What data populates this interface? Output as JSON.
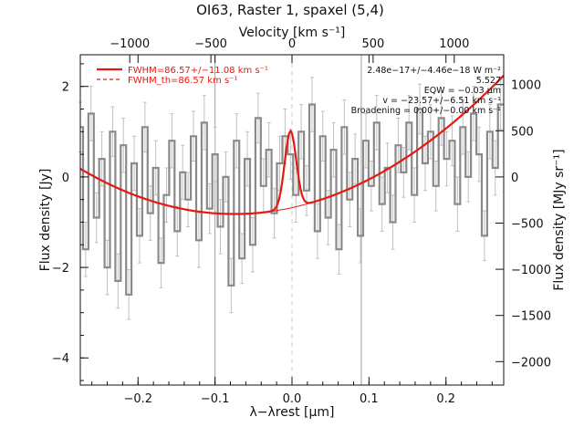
{
  "chart_data": {
    "type": "line",
    "title": "OI63, Raster 1, spaxel (5,4)",
    "xlabel": "λ−λrest [μm]",
    "ylabel_left": "Flux density [Jy]",
    "ylabel_right": "Flux density [MJy sr⁻¹]",
    "xlabel_top": "Velocity [km s⁻¹]",
    "xlim": [
      -0.275,
      0.275
    ],
    "ylim": [
      -4.6,
      2.7
    ],
    "x_ticks": [
      -0.2,
      -0.1,
      0.0,
      0.1,
      0.2
    ],
    "x_tick_labels": [
      "−0.2",
      "−0.1",
      "0.0",
      "0.1",
      "0.2"
    ],
    "y_ticks": [
      -4,
      -2,
      0,
      2
    ],
    "y_tick_labels": [
      "−4",
      "−2",
      "0",
      "2"
    ],
    "top_ticks_kms": [
      -1000,
      -500,
      0,
      500,
      1000
    ],
    "top_tick_labels": [
      "−1000",
      "−500",
      "0",
      "500",
      "1000"
    ],
    "right_ticks_mjy": [
      -2000,
      -1500,
      -1000,
      -500,
      0,
      500,
      1000
    ],
    "right_tick_labels": [
      "−2000",
      "−1500",
      "−1000",
      "−500",
      "0",
      "500",
      "1000"
    ],
    "vertical_lines": [
      -0.1,
      0.0,
      0.09
    ],
    "legend": {
      "placement": "top-left",
      "entries": [
        "FWHM=86.57+/−11.08 km s⁻¹",
        "FWHM_th=86.57 km s⁻¹"
      ]
    },
    "annotations": [
      "2.48e−17+/−4.46e−18 W m⁻²",
      "5.527",
      "EQW = −0.03 μm",
      "v = −23.57+/−6.51 km s⁻¹",
      "Broadening = 0.00+/−0.00 km s⁻¹"
    ],
    "series": [
      {
        "name": "data",
        "x": [
          -0.275,
          -0.268,
          -0.261,
          -0.254,
          -0.247,
          -0.24,
          -0.233,
          -0.226,
          -0.219,
          -0.212,
          -0.205,
          -0.198,
          -0.191,
          -0.184,
          -0.177,
          -0.17,
          -0.163,
          -0.156,
          -0.149,
          -0.142,
          -0.135,
          -0.128,
          -0.121,
          -0.114,
          -0.107,
          -0.1,
          -0.093,
          -0.086,
          -0.079,
          -0.072,
          -0.065,
          -0.058,
          -0.051,
          -0.044,
          -0.037,
          -0.03,
          -0.023,
          -0.016,
          -0.009,
          -0.002,
          0.005,
          0.012,
          0.019,
          0.026,
          0.033,
          0.04,
          0.047,
          0.054,
          0.061,
          0.068,
          0.075,
          0.082,
          0.089,
          0.096,
          0.103,
          0.11,
          0.117,
          0.124,
          0.131,
          0.138,
          0.145,
          0.152,
          0.159,
          0.166,
          0.173,
          0.18,
          0.187,
          0.194,
          0.201,
          0.208,
          0.215,
          0.222,
          0.229,
          0.236,
          0.243,
          0.25,
          0.257,
          0.264,
          0.271
        ],
        "y": [
          1.1,
          -1.6,
          1.4,
          -0.9,
          0.4,
          -2.0,
          1.0,
          -2.3,
          0.7,
          -2.6,
          0.3,
          -1.3,
          1.1,
          -0.8,
          0.2,
          -1.9,
          -0.4,
          0.8,
          -1.2,
          0.1,
          -0.5,
          0.9,
          -1.4,
          1.2,
          -0.7,
          0.5,
          -1.1,
          0.0,
          -2.4,
          0.8,
          -1.8,
          0.4,
          -1.5,
          1.3,
          -0.2,
          0.6,
          -0.8,
          0.3,
          0.9,
          0.5,
          -0.4,
          1.0,
          -0.3,
          1.6,
          -1.2,
          0.9,
          -0.9,
          0.6,
          -1.6,
          1.1,
          -0.5,
          0.4,
          -1.3,
          0.8,
          -0.2,
          1.2,
          -0.6,
          0.2,
          -1.0,
          0.7,
          0.1,
          1.2,
          -0.4,
          1.5,
          0.3,
          1.0,
          -0.2,
          1.3,
          0.4,
          0.8,
          -0.6,
          1.1,
          0.0,
          1.4,
          0.5,
          -1.3,
          1.0,
          0.2,
          1.6
        ],
        "y_err": [
          0.55,
          0.6,
          0.6,
          0.55,
          0.6,
          0.6,
          0.55,
          0.6,
          0.6,
          0.55,
          0.6,
          0.6,
          0.55,
          0.6,
          0.6,
          0.55,
          0.6,
          0.6,
          0.55,
          0.6,
          0.6,
          0.55,
          0.6,
          0.6,
          0.55,
          0.6,
          0.6,
          0.55,
          0.6,
          0.6,
          0.55,
          0.6,
          0.6,
          0.55,
          0.6,
          0.6,
          0.55,
          0.6,
          0.6,
          0.55,
          0.6,
          0.6,
          0.55,
          0.6,
          0.6,
          0.55,
          0.6,
          0.6,
          0.55,
          0.6,
          0.6,
          0.55,
          0.6,
          0.6,
          0.55,
          0.6,
          0.6,
          0.55,
          0.6,
          0.6,
          0.55,
          0.6,
          0.6,
          0.55,
          0.6,
          0.6,
          0.55,
          0.6,
          0.6,
          0.55,
          0.6,
          0.6,
          0.55,
          0.6,
          0.6,
          0.55,
          0.6,
          0.6,
          0.55
        ]
      },
      {
        "name": "fit",
        "baseline": {
          "x0": -0.075,
          "y0": -0.82,
          "curvature": 25.0
        },
        "gaussian": {
          "center": -0.002,
          "amplitude": 1.7,
          "sigma": 0.0075
        }
      }
    ],
    "colors": {
      "data": "#8a8a8a",
      "errorbar": "#c0c0c0",
      "fit": "#e8170f",
      "axis": "#111111",
      "vline": "#a0a0a0",
      "zero_line": "#c8c8c8"
    }
  }
}
